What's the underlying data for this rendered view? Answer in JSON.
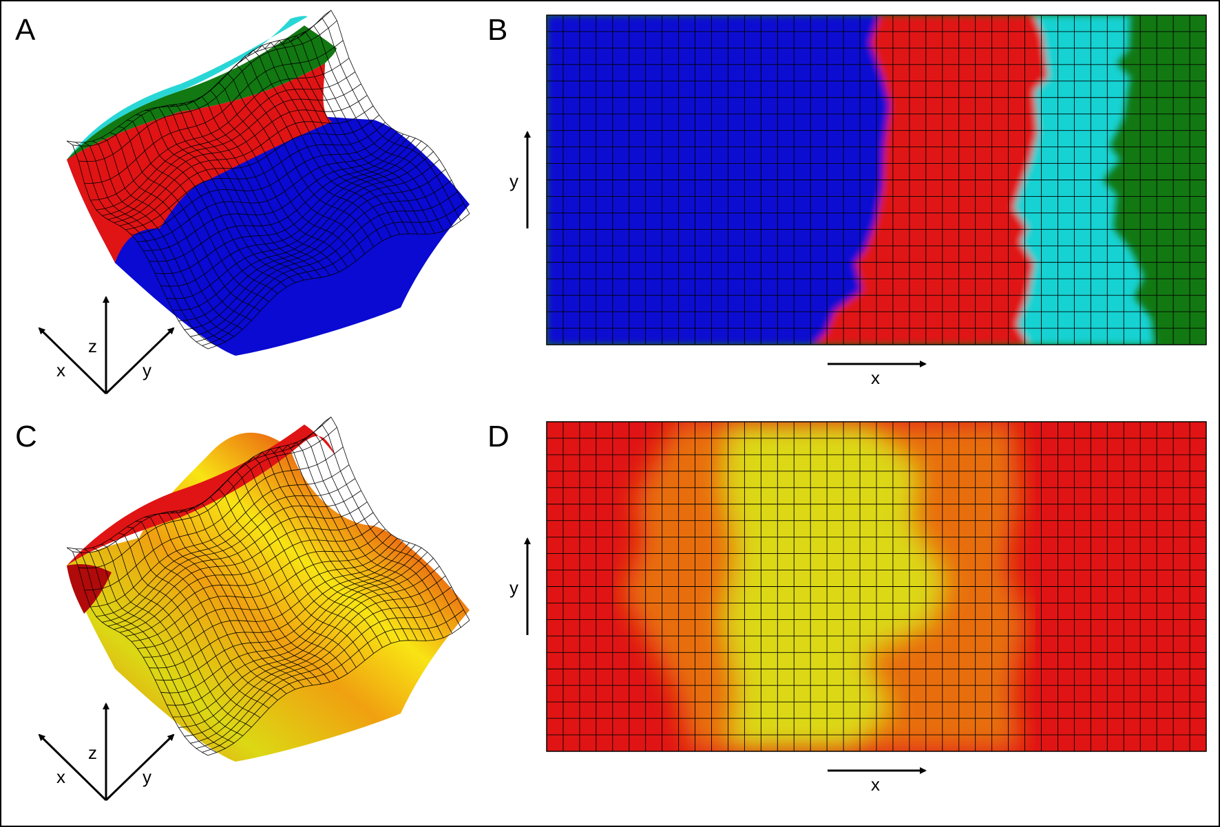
{
  "panels": {
    "a": {
      "label": "A",
      "type": "3d-surface-mesh",
      "color_classes": [
        "blue",
        "red",
        "cyan",
        "green"
      ]
    },
    "b": {
      "label": "B",
      "type": "2d-mesh-map",
      "color_classes": [
        "blue",
        "red",
        "cyan",
        "green"
      ]
    },
    "c": {
      "label": "C",
      "type": "3d-surface-mesh",
      "color_scale": [
        "red",
        "orange",
        "yellow"
      ]
    },
    "d": {
      "label": "D",
      "type": "2d-mesh-map",
      "color_scale": [
        "red",
        "orange",
        "yellow"
      ]
    }
  },
  "axes3d": {
    "x": "x",
    "y": "y",
    "z": "z"
  },
  "axes2d": {
    "x": "x",
    "y": "y"
  },
  "colors": {
    "blue": "#0a0ad2",
    "red": "#e01414",
    "cyan": "#12d2d2",
    "green": "#127812",
    "orange": "#e86e10",
    "yellow": "#dcd814"
  },
  "mesh": {
    "cols": 40,
    "rows": 20
  }
}
